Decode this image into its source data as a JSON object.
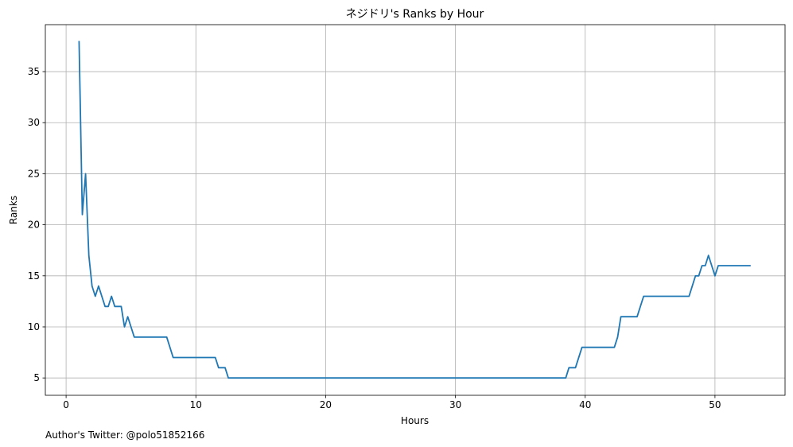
{
  "chart_data": {
    "type": "line",
    "title": "ネジドリ's Ranks by Hour",
    "xlabel": "Hours",
    "ylabel": "Ranks",
    "xlim": [
      -1.6,
      55.4
    ],
    "ylim": [
      3.3,
      39.6
    ],
    "xticks": [
      0,
      10,
      20,
      30,
      40,
      50
    ],
    "yticks": [
      5,
      10,
      15,
      20,
      25,
      30,
      35
    ],
    "grid": true,
    "line_color": "#1f77b4",
    "series": [
      {
        "name": "Ranks",
        "x": [
          1.0,
          1.25,
          1.5,
          1.75,
          2.0,
          2.25,
          2.5,
          2.75,
          3.0,
          3.25,
          3.5,
          3.75,
          4.0,
          4.25,
          4.5,
          4.75,
          5.0,
          5.25,
          7.75,
          8.25,
          11.5,
          11.75,
          12.0,
          12.25,
          12.5,
          38.5,
          38.75,
          39.25,
          39.75,
          42.25,
          42.5,
          42.75,
          44.0,
          44.5,
          48.0,
          48.5,
          48.75,
          49.0,
          49.25,
          49.5,
          49.75,
          50.0,
          50.25,
          52.75
        ],
        "y": [
          38,
          21,
          25,
          17,
          14,
          13,
          14,
          13,
          12,
          12,
          13,
          12,
          12,
          12,
          10,
          11,
          10,
          9,
          9,
          7,
          7,
          6,
          6,
          6,
          5,
          5,
          6,
          6,
          8,
          8,
          9,
          11,
          11,
          13,
          13,
          15,
          15,
          16,
          16,
          17,
          16,
          15,
          16,
          16
        ]
      }
    ]
  },
  "footer": {
    "credit": "Author's Twitter: @polo51852166"
  }
}
